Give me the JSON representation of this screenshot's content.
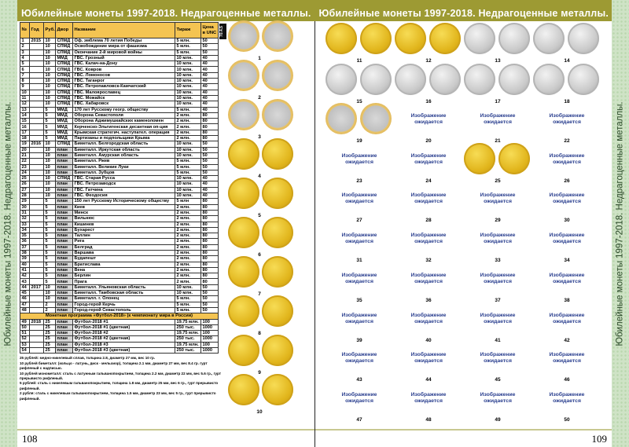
{
  "title": "Юбилейные монеты 1997-2018. Недрагоценные металлы.",
  "side_text": "Юбилейные монеты 1997-2018. Недрагоценные металлы.",
  "badge": "70.4.5",
  "pages": {
    "left": "108",
    "right": "109"
  },
  "colors": {
    "band": "#9d9a33",
    "header": "#f4c452",
    "plan_cell": "#d6d6d6",
    "placeholder_text": "#2a3f8f"
  },
  "table": {
    "headers": [
      "№",
      "Год",
      "Руб.",
      "Двор",
      "Название",
      "Тираж",
      "Цена в UNC"
    ],
    "section_title": "Монетная программа «Футбол-2018» (к чемпионату мира в России)",
    "rows": [
      [
        "1",
        "2015",
        "10",
        "СПМД",
        "Оф. эмблема 70 летия Победы",
        "5 млн.",
        "50"
      ],
      [
        "2",
        "",
        "10",
        "СПМД",
        "Освобождение мира от фашизма",
        "5 млн.",
        "50"
      ],
      [
        "3",
        "",
        "10",
        "СПМД",
        "Окончание 2-й мировой войны",
        "5 млн.",
        "50"
      ],
      [
        "4",
        "",
        "10",
        "ММД",
        "ГВС. Грозный",
        "10 млн.",
        "40"
      ],
      [
        "5",
        "",
        "10",
        "СПМД",
        "ГВС. Калач-на-Дону",
        "10 млн.",
        "40"
      ],
      [
        "6",
        "",
        "10",
        "СПМД",
        "ГВС. Ковров",
        "10 млн.",
        "40"
      ],
      [
        "7",
        "",
        "10",
        "СПМД",
        "ГВС. Ломоносов",
        "10 млн.",
        "40"
      ],
      [
        "8",
        "",
        "10",
        "СПМД",
        "ГВС. Таганрог",
        "10 млн.",
        "40"
      ],
      [
        "9",
        "",
        "10",
        "СПМД",
        "ГВС. Петропавловск-Камчатский",
        "10 млн.",
        "40"
      ],
      [
        "10",
        "",
        "10",
        "СПМД",
        "ГВС. Малоярославец",
        "10 млн.",
        "40"
      ],
      [
        "11",
        "",
        "10",
        "СПМД",
        "ГВС. Можайск",
        "10 млн.",
        "40"
      ],
      [
        "12",
        "",
        "10",
        "СПМД",
        "ГВС. Хабаровск",
        "10 млн.",
        "40"
      ],
      [
        "13",
        "",
        "5",
        "ММД",
        "170 лет Русскому геогр. обществу",
        "5 млн.",
        "40"
      ],
      [
        "14",
        "",
        "5",
        "ММД",
        "Оборона Севастополя",
        "2 млн.",
        "80"
      ],
      [
        "15",
        "",
        "5",
        "ММД",
        "Оборона Аджимушкайских каменоломен",
        "2 млн.",
        "80"
      ],
      [
        "16",
        "",
        "5",
        "ММД",
        "Керченско-Эльтигенская десантная оп-ция",
        "2 млн.",
        "80"
      ],
      [
        "17",
        "",
        "5",
        "ММД",
        "Крымская стратегич. наступател. операция",
        "2 млн.",
        "80"
      ],
      [
        "18",
        "",
        "5",
        "ММД",
        "Партизаны и подпольщики Крыма",
        "2 млн.",
        "80"
      ],
      [
        "19",
        "2016",
        "10",
        "СПМД",
        "Биметалл. Белгородская область",
        "10 млн.",
        "50"
      ],
      [
        "20",
        "",
        "10",
        "план",
        "Биметалл. Иркутская область",
        "10 млн.",
        "50"
      ],
      [
        "21",
        "",
        "10",
        "план",
        "Биметалл. Амурская область",
        "10 млн.",
        "50"
      ],
      [
        "22",
        "",
        "10",
        "план",
        "Биметалл. Ржев",
        "5 млн.",
        "50"
      ],
      [
        "23",
        "",
        "10",
        "план",
        "Биметалл. Великие Луки",
        "5 млн.",
        "50"
      ],
      [
        "24",
        "",
        "10",
        "план",
        "Биметалл. Зубцов",
        "5 млн.",
        "50"
      ],
      [
        "25",
        "",
        "10",
        "СПМД",
        "ГВС. Старая Русса",
        "10 млн.",
        "40"
      ],
      [
        "26",
        "",
        "10",
        "план",
        "ГВС. Петрозаводск",
        "10 млн.",
        "40"
      ],
      [
        "27",
        "",
        "10",
        "план",
        "ГВС. Гатчина",
        "10 млн.",
        "40"
      ],
      [
        "28",
        "",
        "10",
        "план",
        "ГВС. Феодосия",
        "10 млн.",
        "40"
      ],
      [
        "29",
        "",
        "5",
        "план",
        "150 лет Русскому Историческому обществу",
        "5 млн",
        "80"
      ],
      [
        "30",
        "",
        "5",
        "план",
        "Киев",
        "2 млн.",
        "80"
      ],
      [
        "31",
        "",
        "5",
        "план",
        "Минск",
        "2 млн.",
        "80"
      ],
      [
        "32",
        "",
        "5",
        "план",
        "Вильнюс",
        "2 млн.",
        "80"
      ],
      [
        "33",
        "",
        "5",
        "план",
        "Кишинев",
        "2 млн.",
        "80"
      ],
      [
        "34",
        "",
        "5",
        "план",
        "Бухарест",
        "2 млн.",
        "80"
      ],
      [
        "35",
        "",
        "5",
        "план",
        "Таллин",
        "2 млн.",
        "80"
      ],
      [
        "36",
        "",
        "5",
        "план",
        "Рига",
        "2 млн.",
        "80"
      ],
      [
        "37",
        "",
        "5",
        "план",
        "Белград",
        "2 млн.",
        "80"
      ],
      [
        "38",
        "",
        "5",
        "план",
        "Варшава",
        "2 млн.",
        "80"
      ],
      [
        "39",
        "",
        "5",
        "план",
        "Будапешт",
        "2 млн.",
        "80"
      ],
      [
        "40",
        "",
        "5",
        "план",
        "Братислава",
        "2 млн.",
        "80"
      ],
      [
        "41",
        "",
        "5",
        "план",
        "Вена",
        "2 млн.",
        "80"
      ],
      [
        "42",
        "",
        "5",
        "план",
        "Берлин",
        "2 млн.",
        "80"
      ],
      [
        "43",
        "",
        "5",
        "план",
        "Прага",
        "2 млн.",
        "80"
      ],
      [
        "44",
        "2017",
        "10",
        "план",
        "Биметалл. Ульяновская область",
        "10 млн.",
        "50"
      ],
      [
        "45",
        "",
        "10",
        "план",
        "Биметалл. Тамбовская область",
        "10 млн.",
        "50"
      ],
      [
        "46",
        "",
        "10",
        "план",
        "Биметалл. г. Олонец",
        "5 млн.",
        "50"
      ],
      [
        "47",
        "",
        "2",
        "план",
        "Город-герой Керчь",
        "5 млн.",
        "50"
      ],
      [
        "48",
        "",
        "2",
        "план",
        "Город-герой Севастополь",
        "5 млн.",
        "50"
      ]
    ],
    "rows_after_section": [
      [
        "49",
        "2018",
        "25",
        "план",
        "Футбол-2018 #1",
        "19.75 млн.",
        "100"
      ],
      [
        "50",
        "",
        "25",
        "план",
        "Футбол-2018 #1 (цветная)",
        "250 тыс.",
        "1000"
      ],
      [
        "51",
        "",
        "25",
        "план",
        "Футбол-2018 #2",
        "19.75 млн.",
        "100"
      ],
      [
        "52",
        "",
        "25",
        "план",
        "Футбол-2018 #2 (цветная)",
        "250 тыс.",
        "1000"
      ],
      [
        "53",
        "",
        "25",
        "план",
        "Футбол-2018 #3",
        "19.75 млн.",
        "100"
      ],
      [
        "54",
        "",
        "25",
        "план",
        "Футбол-2018 #3 (цветная)",
        "250 тыс.",
        "1000"
      ]
    ]
  },
  "notes": [
    "25 рублей: медно-никелевый сплав, толщина 2.8, диаметр 27 мм, вес 10 гр.",
    "10 рублей биметалл: (кольцо - латунь, диск - мельхиор), толщина 2.1 мм, диаметр 27 мм, вес 8.4 гр. гурт рифленый с надписью.",
    "10 рублей монометалл: сталь с латунным гальванопокрытием, толщина 2.2 мм, диаметр 22 мм, вес 5.6 гр., гурт прерывисто рифленый.",
    "5 рублей: сталь с никелевым гальванопокрытием, толщина 1.8 мм, диаметр 25 мм, вес 6 гр., гурт прерывисто рифленый.",
    "2 рубля: сталь с никелевым гальванопокрытием, толщина 1.5 мм, диаметр 23 мм, вес 5 гр., гурт прерывисто рифленый."
  ],
  "placeholder_text": "Изображение ожидается",
  "left_coins": [
    {
      "n": "1",
      "metal": "bimetal"
    },
    {
      "n": "2",
      "metal": "bimetal"
    },
    {
      "n": "3",
      "metal": "bimetal"
    },
    {
      "n": "4",
      "metal": "gold"
    },
    {
      "n": "5",
      "metal": "gold"
    },
    {
      "n": "6",
      "metal": "gold"
    },
    {
      "n": "7",
      "metal": "gold"
    },
    {
      "n": "8",
      "metal": "gold"
    },
    {
      "n": "9",
      "metal": "gold"
    },
    {
      "n": "10",
      "metal": "gold"
    }
  ],
  "right_coins": [
    {
      "n": "11",
      "metal": "gold"
    },
    {
      "n": "12",
      "metal": "gold"
    },
    {
      "n": "13",
      "metal": "silver"
    },
    {
      "n": "14",
      "metal": "silver"
    },
    {
      "n": "15",
      "metal": "silver"
    },
    {
      "n": "16",
      "metal": "silver"
    },
    {
      "n": "17",
      "metal": "silver"
    },
    {
      "n": "18",
      "metal": "silver"
    },
    {
      "n": "19",
      "metal": "bimetal"
    },
    {
      "n": "20",
      "metal": "none"
    },
    {
      "n": "21",
      "metal": "none"
    },
    {
      "n": "22",
      "metal": "none"
    },
    {
      "n": "23",
      "metal": "none"
    },
    {
      "n": "24",
      "metal": "none"
    },
    {
      "n": "25",
      "metal": "gold"
    },
    {
      "n": "26",
      "metal": "none"
    },
    {
      "n": "27",
      "metal": "none"
    },
    {
      "n": "28",
      "metal": "none"
    },
    {
      "n": "29",
      "metal": "none"
    },
    {
      "n": "30",
      "metal": "none"
    },
    {
      "n": "31",
      "metal": "none"
    },
    {
      "n": "32",
      "metal": "none"
    },
    {
      "n": "33",
      "metal": "none"
    },
    {
      "n": "34",
      "metal": "none"
    },
    {
      "n": "35",
      "metal": "none"
    },
    {
      "n": "36",
      "metal": "none"
    },
    {
      "n": "37",
      "metal": "none"
    },
    {
      "n": "38",
      "metal": "none"
    },
    {
      "n": "39",
      "metal": "none"
    },
    {
      "n": "40",
      "metal": "none"
    },
    {
      "n": "41",
      "metal": "none"
    },
    {
      "n": "42",
      "metal": "none"
    },
    {
      "n": "43",
      "metal": "none"
    },
    {
      "n": "44",
      "metal": "none"
    },
    {
      "n": "45",
      "metal": "none"
    },
    {
      "n": "46",
      "metal": "none"
    },
    {
      "n": "47",
      "metal": "none"
    },
    {
      "n": "48",
      "metal": "none"
    },
    {
      "n": "49",
      "metal": "none"
    },
    {
      "n": "50",
      "metal": "none"
    }
  ]
}
